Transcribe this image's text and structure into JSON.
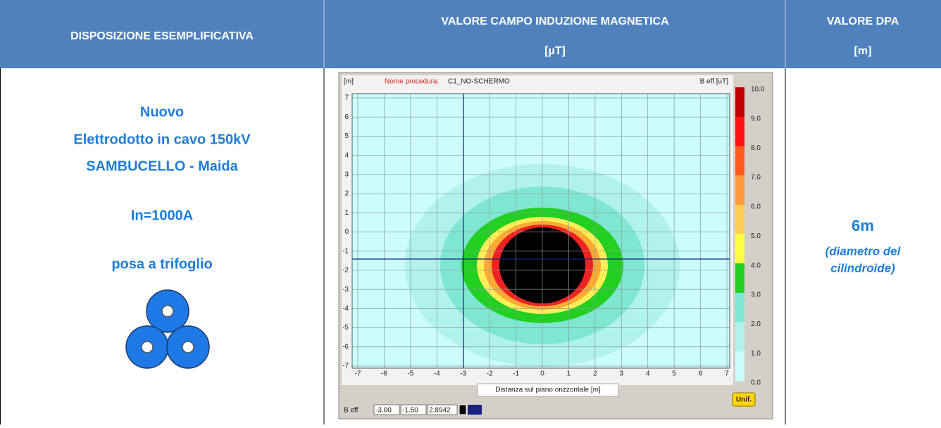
{
  "header": {
    "arrangement": "DISPOSIZIONE ESEMPLIFICATIVA",
    "field": [
      "VALORE CAMPO INDUZIONE MAGNETICA",
      "[µT]"
    ],
    "dpa": [
      "VALORE DPA",
      "[m]"
    ]
  },
  "arrangement": {
    "lines": [
      "Nuovo",
      "Elettrodotto in cavo 150kV",
      "SAMBUCELLO - Maida"
    ],
    "current": "In=1000A",
    "laying": "posa a trifoglio"
  },
  "plot": {
    "y_unit": "[m]",
    "procedure_label": "Nome procedura:",
    "procedure_name": "C1_NO-SCHERMO",
    "field_label": "B eff [uT]",
    "x_ticks": [
      "-7",
      "-6",
      "-5",
      "-4",
      "-3",
      "-2",
      "-1",
      "0",
      "1",
      "2",
      "3",
      "4",
      "5",
      "6",
      "7"
    ],
    "y_ticks": [
      "7",
      "6",
      "5",
      "4",
      "3",
      "2",
      "1",
      "0",
      "-1",
      "-2",
      "-3",
      "-4",
      "-5",
      "-6",
      "-7"
    ],
    "x_label": "Distanza sul piano orizzontale [m]",
    "scale": [
      "10.0",
      "9.0",
      "8.0",
      "7.0",
      "6.0",
      "5.0",
      "4.0",
      "3.0",
      "2.0",
      "1.0",
      "0.0"
    ],
    "button": "Unif.",
    "status": [
      "B eff",
      "-3.00",
      "-1.50",
      "2.8942"
    ]
  },
  "dpa": {
    "value": "6m",
    "note": [
      "(diametro del",
      "cilindroide)"
    ]
  }
}
